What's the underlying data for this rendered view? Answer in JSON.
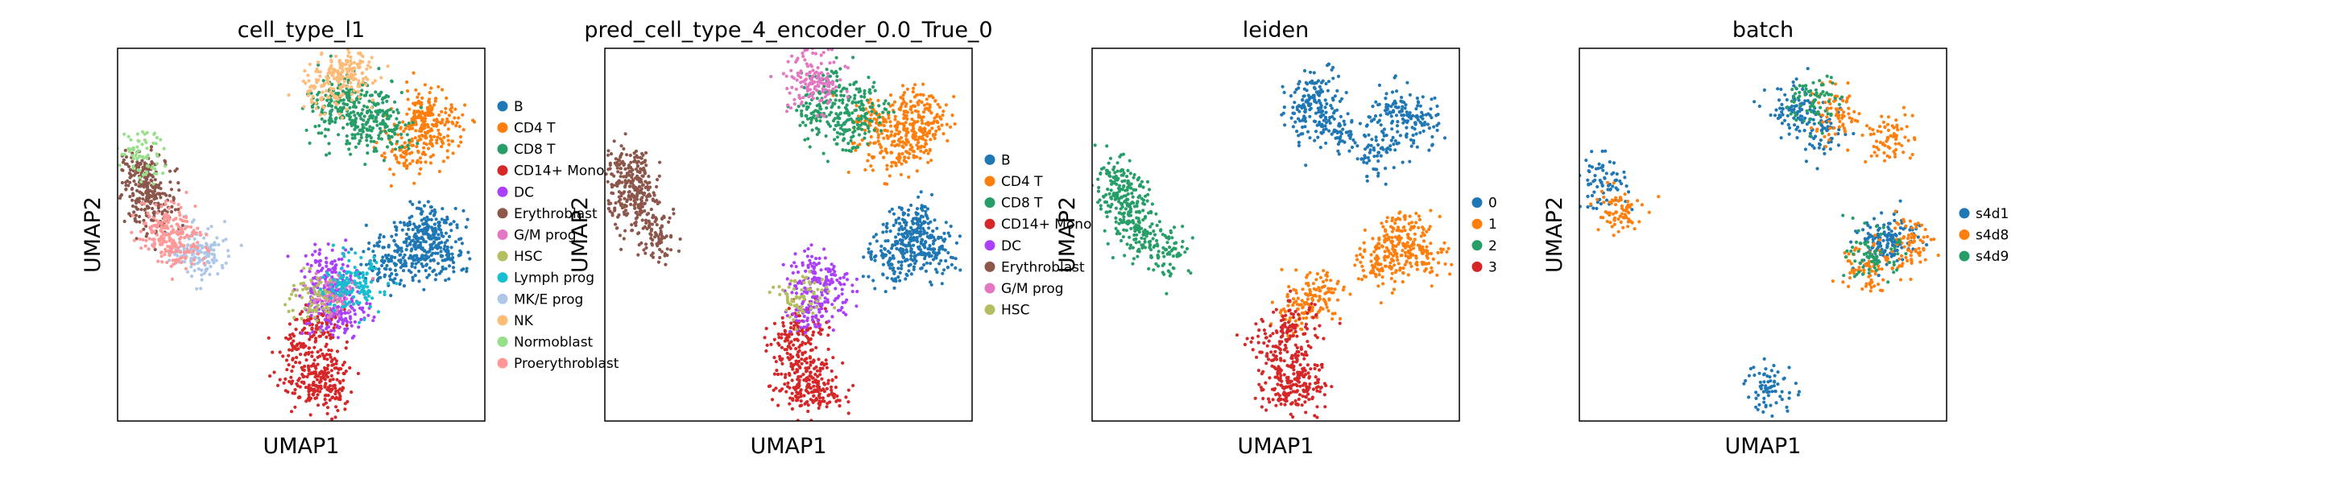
{
  "figure": {
    "panels": [
      {
        "title": "cell_type_l1",
        "xlabel": "UMAP1",
        "ylabel": "UMAP2",
        "legend": [
          {
            "label": "B",
            "color": "#1f77b4"
          },
          {
            "label": "CD4 T",
            "color": "#ff7f0e"
          },
          {
            "label": "CD8 T",
            "color": "#279e68"
          },
          {
            "label": "CD14+ Mono",
            "color": "#d62728"
          },
          {
            "label": "DC",
            "color": "#aa40fc"
          },
          {
            "label": "Erythroblast",
            "color": "#8c564b"
          },
          {
            "label": "G/M prog",
            "color": "#e377c2"
          },
          {
            "label": "HSC",
            "color": "#b5bd61"
          },
          {
            "label": "Lymph prog",
            "color": "#17becf"
          },
          {
            "label": "MK/E prog",
            "color": "#aec7e8"
          },
          {
            "label": "NK",
            "color": "#ffbb78"
          },
          {
            "label": "Normoblast",
            "color": "#98df8a"
          },
          {
            "label": "Proerythroblast",
            "color": "#ff9896"
          }
        ]
      },
      {
        "title": "pred_cell_type_4_encoder_0.0_True_0",
        "xlabel": "UMAP1",
        "ylabel": "UMAP2",
        "legend": [
          {
            "label": "B",
            "color": "#1f77b4"
          },
          {
            "label": "CD4 T",
            "color": "#ff7f0e"
          },
          {
            "label": "CD8 T",
            "color": "#279e68"
          },
          {
            "label": "CD14+ Mono",
            "color": "#d62728"
          },
          {
            "label": "DC",
            "color": "#aa40fc"
          },
          {
            "label": "Erythroblast",
            "color": "#8c564b"
          },
          {
            "label": "G/M prog",
            "color": "#e377c2"
          },
          {
            "label": "HSC",
            "color": "#b5bd61"
          }
        ]
      },
      {
        "title": "leiden",
        "xlabel": "UMAP1",
        "ylabel": "UMAP2",
        "legend": [
          {
            "label": "0",
            "color": "#1f77b4"
          },
          {
            "label": "1",
            "color": "#ff7f0e"
          },
          {
            "label": "2",
            "color": "#279e68"
          },
          {
            "label": "3",
            "color": "#d62728"
          }
        ]
      },
      {
        "title": "batch",
        "xlabel": "UMAP1",
        "ylabel": "UMAP2",
        "legend": [
          {
            "label": "s4d1",
            "color": "#1f77b4"
          },
          {
            "label": "s4d8",
            "color": "#ff7f0e"
          },
          {
            "label": "s4d9",
            "color": "#279e68"
          }
        ]
      }
    ]
  },
  "chart_data": [
    {
      "type": "scatter",
      "title": "cell_type_l1",
      "xlabel": "UMAP1",
      "ylabel": "UMAP2",
      "axes_ticks": false,
      "legend_position": "right",
      "series": [
        {
          "name": "B",
          "color": "#1f77b4",
          "points": [
            [
              0.82,
              0.47
            ],
            [
              0.86,
              0.5
            ],
            [
              0.9,
              0.45
            ],
            [
              0.78,
              0.42
            ],
            [
              0.72,
              0.43
            ],
            [
              0.84,
              0.53
            ]
          ]
        },
        {
          "name": "CD4 T",
          "color": "#ff7f0e",
          "points": [
            [
              0.82,
              0.83
            ],
            [
              0.88,
              0.8
            ],
            [
              0.78,
              0.72
            ],
            [
              0.84,
              0.76
            ]
          ]
        },
        {
          "name": "CD8 T",
          "color": "#279e68",
          "points": [
            [
              0.58,
              0.83
            ],
            [
              0.66,
              0.78
            ],
            [
              0.62,
              0.88
            ],
            [
              0.7,
              0.85
            ],
            [
              0.74,
              0.78
            ]
          ]
        },
        {
          "name": "CD14+ Mono",
          "color": "#d62728",
          "points": [
            [
              0.52,
              0.09
            ],
            [
              0.56,
              0.13
            ],
            [
              0.5,
              0.2
            ],
            [
              0.58,
              0.08
            ],
            [
              0.55,
              0.25
            ]
          ]
        },
        {
          "name": "DC",
          "color": "#aa40fc",
          "points": [
            [
              0.56,
              0.3
            ],
            [
              0.6,
              0.35
            ],
            [
              0.62,
              0.29
            ],
            [
              0.57,
              0.4
            ]
          ]
        },
        {
          "name": "Erythroblast",
          "color": "#8c564b",
          "points": [
            [
              0.06,
              0.64
            ],
            [
              0.08,
              0.6
            ],
            [
              0.1,
              0.56
            ],
            [
              0.07,
              0.68
            ]
          ]
        },
        {
          "name": "G/M prog",
          "color": "#e377c2",
          "points": [
            [
              0.58,
              0.34
            ]
          ]
        },
        {
          "name": "HSC",
          "color": "#b5bd61",
          "points": [
            [
              0.53,
              0.33
            ]
          ]
        },
        {
          "name": "Lymph prog",
          "color": "#17becf",
          "points": [
            [
              0.67,
              0.36
            ],
            [
              0.62,
              0.37
            ]
          ]
        },
        {
          "name": "MK/E prog",
          "color": "#aec7e8",
          "points": [
            [
              0.24,
              0.44
            ],
            [
              0.2,
              0.46
            ]
          ]
        },
        {
          "name": "NK",
          "color": "#ffbb78",
          "points": [
            [
              0.56,
              0.9
            ],
            [
              0.61,
              0.92
            ],
            [
              0.64,
              0.94
            ]
          ]
        },
        {
          "name": "Normoblast",
          "color": "#98df8a",
          "points": [
            [
              0.06,
              0.71
            ]
          ]
        },
        {
          "name": "Proerythroblast",
          "color": "#ff9896",
          "points": [
            [
              0.14,
              0.5
            ],
            [
              0.18,
              0.47
            ],
            [
              0.12,
              0.53
            ]
          ]
        }
      ]
    },
    {
      "type": "scatter",
      "title": "pred_cell_type_4_encoder_0.0_True_0",
      "xlabel": "UMAP1",
      "ylabel": "UMAP2",
      "axes_ticks": false,
      "legend_position": "right",
      "series": [
        {
          "name": "B",
          "color": "#1f77b4",
          "points": [
            [
              0.82,
              0.47
            ],
            [
              0.86,
              0.5
            ],
            [
              0.9,
              0.45
            ],
            [
              0.78,
              0.42
            ],
            [
              0.84,
              0.53
            ]
          ]
        },
        {
          "name": "CD4 T",
          "color": "#ff7f0e",
          "points": [
            [
              0.82,
              0.83
            ],
            [
              0.88,
              0.8
            ],
            [
              0.78,
              0.72
            ],
            [
              0.84,
              0.76
            ],
            [
              0.74,
              0.8
            ]
          ]
        },
        {
          "name": "CD8 T",
          "color": "#279e68",
          "points": [
            [
              0.58,
              0.83
            ],
            [
              0.66,
              0.78
            ],
            [
              0.62,
              0.88
            ],
            [
              0.7,
              0.85
            ]
          ]
        },
        {
          "name": "CD14+ Mono",
          "color": "#d62728",
          "points": [
            [
              0.52,
              0.09
            ],
            [
              0.56,
              0.13
            ],
            [
              0.5,
              0.2
            ],
            [
              0.58,
              0.08
            ],
            [
              0.55,
              0.25
            ]
          ]
        },
        {
          "name": "DC",
          "color": "#aa40fc",
          "points": [
            [
              0.56,
              0.3
            ],
            [
              0.6,
              0.35
            ],
            [
              0.57,
              0.4
            ]
          ]
        },
        {
          "name": "Erythroblast",
          "color": "#8c564b",
          "points": [
            [
              0.06,
              0.64
            ],
            [
              0.08,
              0.6
            ],
            [
              0.1,
              0.56
            ],
            [
              0.07,
              0.68
            ],
            [
              0.14,
              0.5
            ]
          ]
        },
        {
          "name": "G/M prog",
          "color": "#e377c2",
          "points": [
            [
              0.55,
              0.93
            ],
            [
              0.58,
              0.9
            ]
          ]
        },
        {
          "name": "HSC",
          "color": "#b5bd61",
          "points": [
            [
              0.53,
              0.33
            ]
          ]
        }
      ]
    },
    {
      "type": "scatter",
      "title": "leiden",
      "xlabel": "UMAP1",
      "ylabel": "UMAP2",
      "axes_ticks": false,
      "legend_position": "right",
      "series": [
        {
          "name": "0",
          "color": "#1f77b4",
          "points": [
            [
              0.58,
              0.83
            ],
            [
              0.66,
              0.78
            ],
            [
              0.82,
              0.83
            ],
            [
              0.88,
              0.8
            ],
            [
              0.78,
              0.72
            ],
            [
              0.62,
              0.88
            ]
          ]
        },
        {
          "name": "1",
          "color": "#ff7f0e",
          "points": [
            [
              0.82,
              0.47
            ],
            [
              0.86,
              0.5
            ],
            [
              0.9,
              0.45
            ],
            [
              0.78,
              0.42
            ],
            [
              0.62,
              0.35
            ],
            [
              0.56,
              0.3
            ]
          ]
        },
        {
          "name": "2",
          "color": "#279e68",
          "points": [
            [
              0.06,
              0.64
            ],
            [
              0.08,
              0.6
            ],
            [
              0.1,
              0.56
            ],
            [
              0.14,
              0.5
            ],
            [
              0.2,
              0.46
            ]
          ]
        },
        {
          "name": "3",
          "color": "#d62728",
          "points": [
            [
              0.52,
              0.09
            ],
            [
              0.56,
              0.13
            ],
            [
              0.5,
              0.2
            ],
            [
              0.58,
              0.08
            ],
            [
              0.55,
              0.25
            ]
          ]
        }
      ]
    },
    {
      "type": "scatter",
      "title": "batch",
      "xlabel": "UMAP1",
      "ylabel": "UMAP2",
      "axes_ticks": false,
      "legend_position": "right",
      "series": [
        {
          "name": "s4d1",
          "color": "#1f77b4",
          "points": [
            [
              0.58,
              0.83
            ],
            [
              0.82,
              0.47
            ],
            [
              0.06,
              0.64
            ],
            [
              0.52,
              0.09
            ],
            [
              0.86,
              0.5
            ],
            [
              0.66,
              0.78
            ]
          ]
        },
        {
          "name": "s4d8",
          "color": "#ff7f0e",
          "points": [
            [
              0.7,
              0.82
            ],
            [
              0.84,
              0.76
            ],
            [
              0.9,
              0.48
            ],
            [
              0.78,
              0.42
            ],
            [
              0.1,
              0.56
            ]
          ]
        },
        {
          "name": "s4d9",
          "color": "#279e68",
          "points": [
            [
              0.64,
              0.86
            ],
            [
              0.8,
              0.44
            ]
          ]
        }
      ]
    }
  ]
}
